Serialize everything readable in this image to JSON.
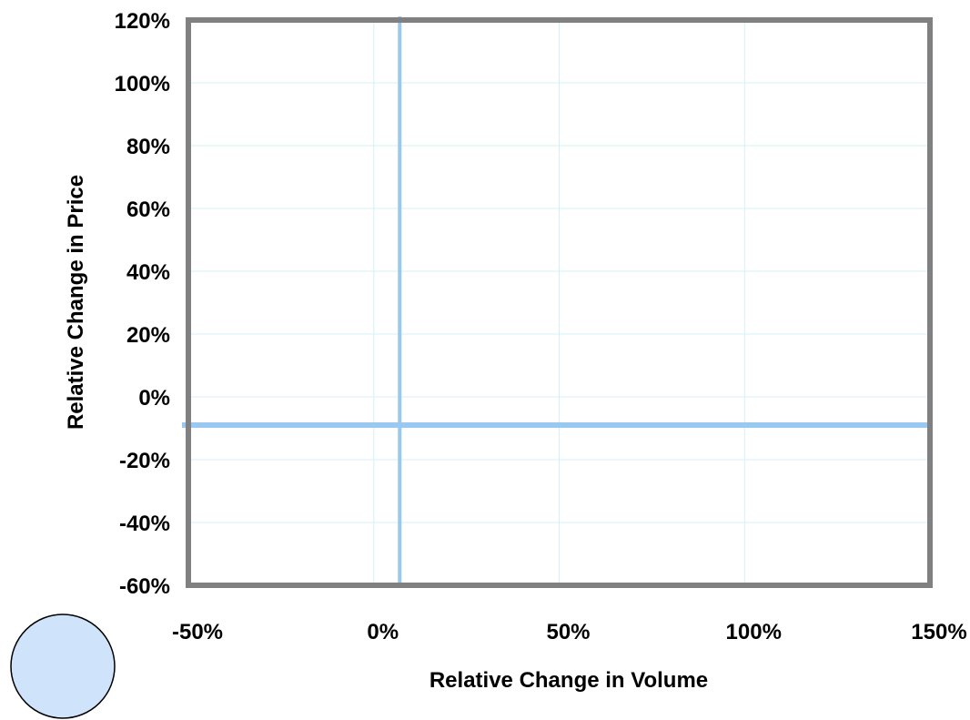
{
  "chart_data": {
    "type": "scatter",
    "title": "",
    "xlabel": "Relative Change in Volume",
    "ylabel": "Relative Change in Price",
    "xlim": [
      -50,
      150
    ],
    "ylim": [
      -60,
      120
    ],
    "x_ticks": [
      -50,
      0,
      50,
      100,
      150
    ],
    "y_ticks": [
      -60,
      -40,
      -20,
      0,
      20,
      40,
      60,
      80,
      100,
      120
    ],
    "x_tick_labels": [
      "-50%",
      "0%",
      "50%",
      "100%",
      "150%"
    ],
    "y_tick_labels": [
      "-60%",
      "-40%",
      "-20%",
      "0%",
      "20%",
      "40%",
      "60%",
      "80%",
      "100%",
      "120%"
    ],
    "grid": true,
    "reference_lines": {
      "vertical_x": 7,
      "horizontal_y": -9
    },
    "points": [],
    "colors": {
      "frame": "#808080",
      "grid": "#d6f0fa",
      "reference_line": "#99c8f0",
      "legend_marker_fill": "#cfe3fb",
      "legend_marker_stroke": "#000000"
    }
  }
}
